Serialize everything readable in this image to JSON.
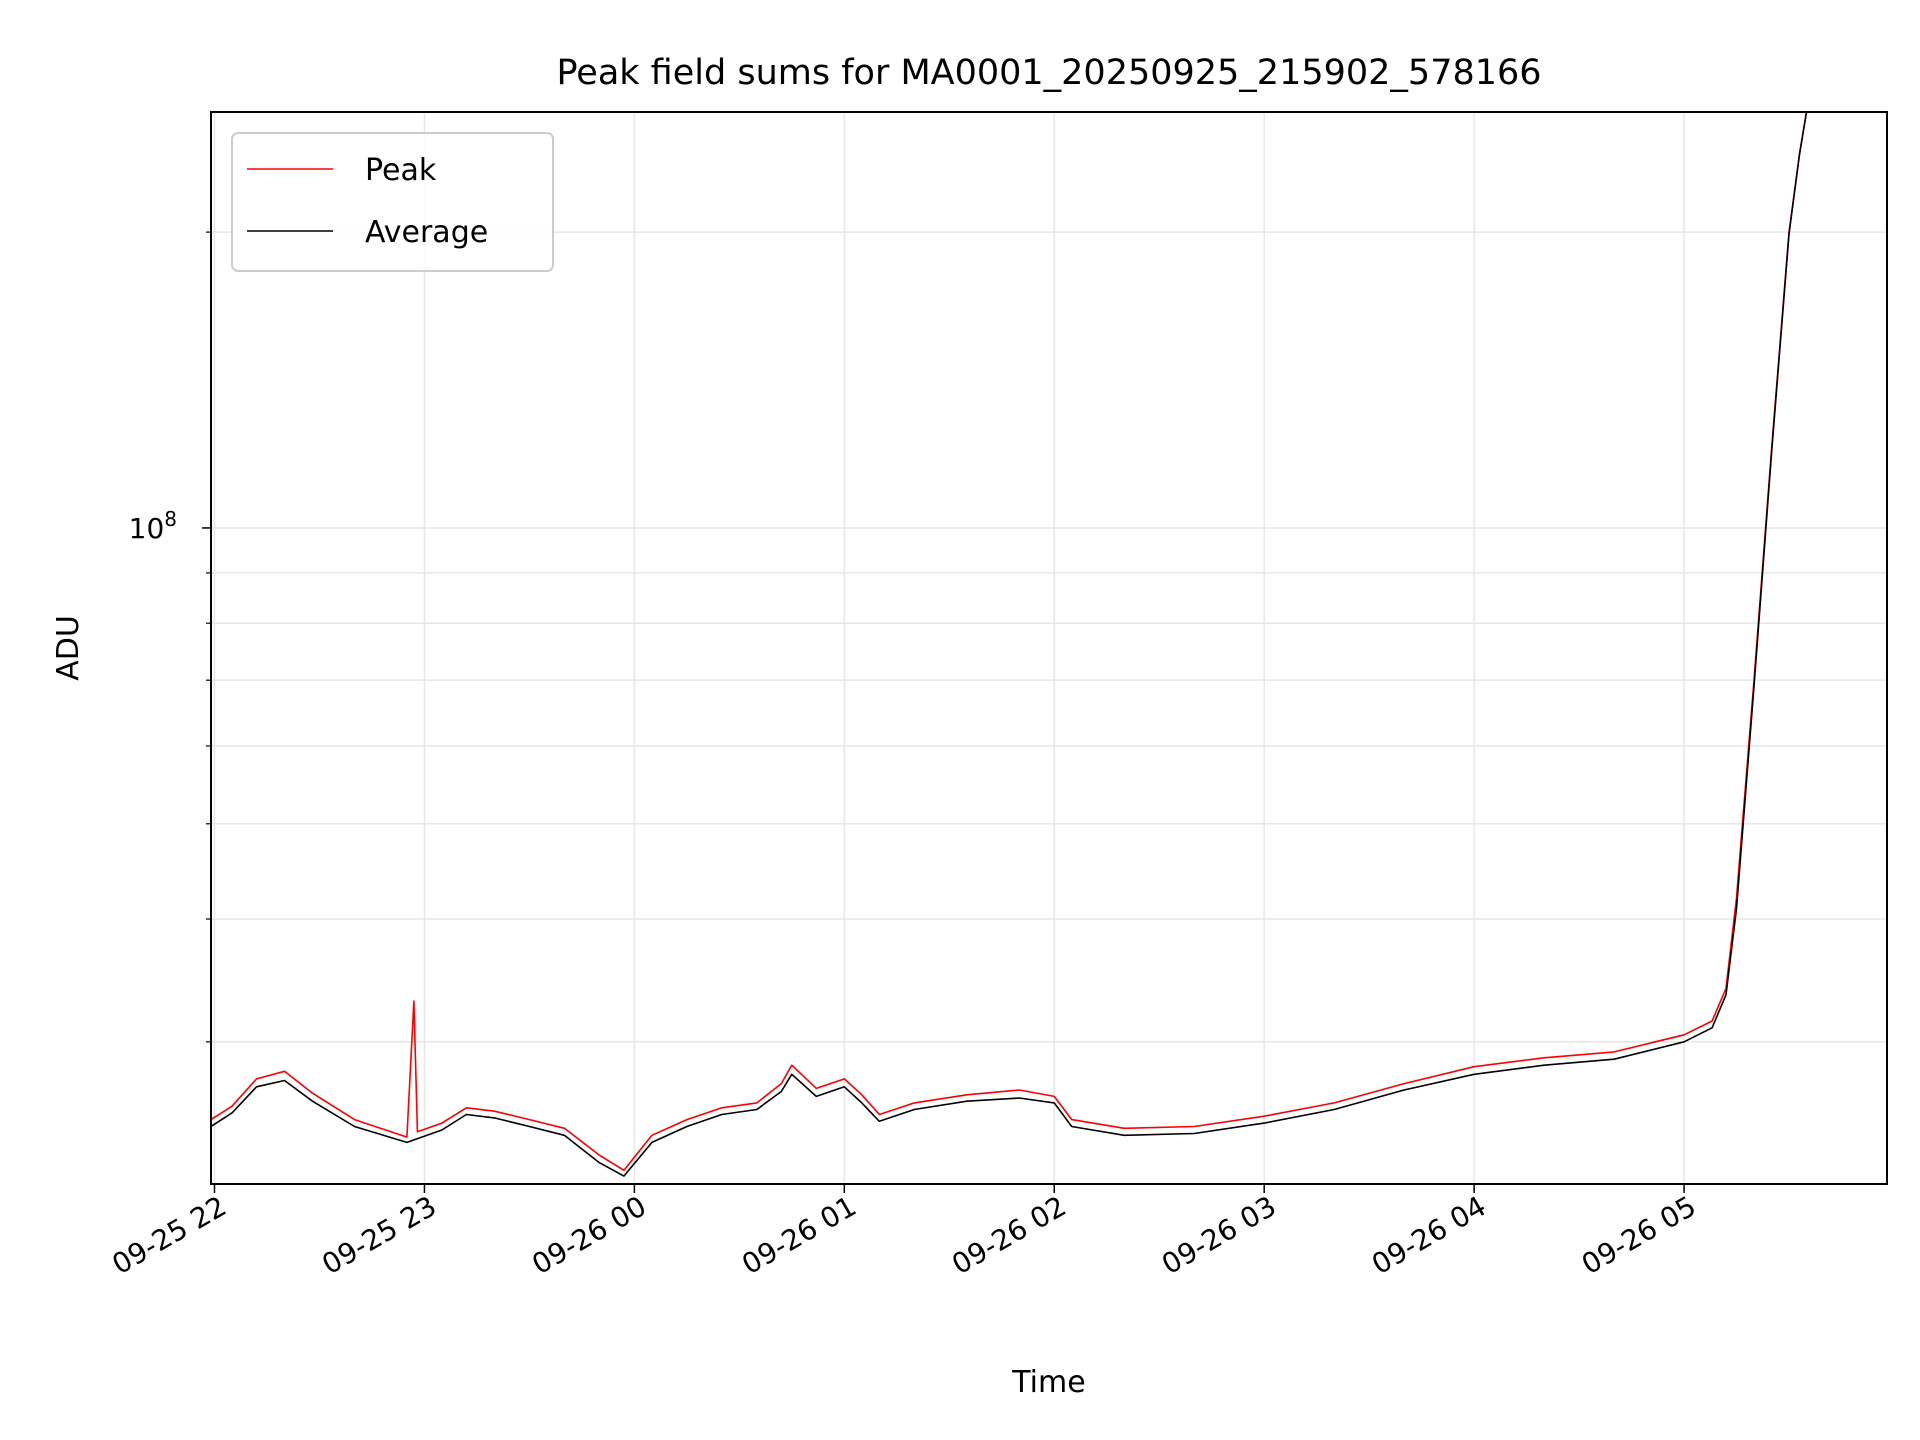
{
  "chart_data": {
    "type": "line",
    "title": "Peak field sums for MA0001_20250925_215902_578166",
    "xlabel": "Time",
    "ylabel": "ADU",
    "y_scale": "log",
    "grid": true,
    "legend_placement": "top-left",
    "xlim": [
      "2025-09-25 21:59",
      "2025-09-26 05:58"
    ],
    "ylim": [
      21500000,
      265000000
    ],
    "x_ticks": [
      {
        "value": "2025-09-25 22:00",
        "label": "09-25 22"
      },
      {
        "value": "2025-09-25 23:00",
        "label": "09-25 23"
      },
      {
        "value": "2025-09-26 00:00",
        "label": "09-26 00"
      },
      {
        "value": "2025-09-26 01:00",
        "label": "09-26 01"
      },
      {
        "value": "2025-09-26 02:00",
        "label": "09-26 02"
      },
      {
        "value": "2025-09-26 03:00",
        "label": "09-26 03"
      },
      {
        "value": "2025-09-26 04:00",
        "label": "09-26 04"
      },
      {
        "value": "2025-09-26 05:00",
        "label": "09-26 05"
      }
    ],
    "y_major_ticks": [
      {
        "value": 100000000,
        "base": "10",
        "exp": "8"
      }
    ],
    "y_minor_ticks": [
      30000000,
      40000000,
      50000000,
      60000000,
      70000000,
      80000000,
      90000000,
      200000000
    ],
    "series": [
      {
        "name": "Peak",
        "color": "#ff0000",
        "points": [
          [
            "2025-09-25 21:59",
            25000000
          ],
          [
            "2025-09-25 22:05",
            25800000
          ],
          [
            "2025-09-25 22:12",
            27500000
          ],
          [
            "2025-09-25 22:20",
            28000000
          ],
          [
            "2025-09-25 22:28",
            26600000
          ],
          [
            "2025-09-25 22:40",
            25000000
          ],
          [
            "2025-09-25 22:55",
            24000000
          ],
          [
            "2025-09-25 22:57",
            33000000
          ],
          [
            "2025-09-25 22:58",
            24300000
          ],
          [
            "2025-09-25 23:05",
            24800000
          ],
          [
            "2025-09-25 23:12",
            25700000
          ],
          [
            "2025-09-25 23:20",
            25500000
          ],
          [
            "2025-09-25 23:30",
            25000000
          ],
          [
            "2025-09-25 23:40",
            24500000
          ],
          [
            "2025-09-25 23:50",
            23000000
          ],
          [
            "2025-09-25 23:57",
            22200000
          ],
          [
            "2025-09-26 00:05",
            24100000
          ],
          [
            "2025-09-26 00:15",
            25000000
          ],
          [
            "2025-09-26 00:25",
            25700000
          ],
          [
            "2025-09-26 00:35",
            26000000
          ],
          [
            "2025-09-26 00:42",
            27200000
          ],
          [
            "2025-09-26 00:45",
            28400000
          ],
          [
            "2025-09-26 00:52",
            26900000
          ],
          [
            "2025-09-26 01:00",
            27500000
          ],
          [
            "2025-09-26 01:05",
            26500000
          ],
          [
            "2025-09-26 01:10",
            25300000
          ],
          [
            "2025-09-26 01:20",
            26000000
          ],
          [
            "2025-09-26 01:35",
            26500000
          ],
          [
            "2025-09-26 01:50",
            26800000
          ],
          [
            "2025-09-26 02:00",
            26400000
          ],
          [
            "2025-09-26 02:05",
            25000000
          ],
          [
            "2025-09-26 02:20",
            24500000
          ],
          [
            "2025-09-26 02:40",
            24600000
          ],
          [
            "2025-09-26 03:00",
            25200000
          ],
          [
            "2025-09-26 03:20",
            26000000
          ],
          [
            "2025-09-26 03:40",
            27200000
          ],
          [
            "2025-09-26 04:00",
            28300000
          ],
          [
            "2025-09-26 04:20",
            28900000
          ],
          [
            "2025-09-26 04:40",
            29300000
          ],
          [
            "2025-09-26 05:00",
            30500000
          ],
          [
            "2025-09-26 05:08",
            31500000
          ],
          [
            "2025-09-26 05:12",
            34000000
          ],
          [
            "2025-09-26 05:15",
            42000000
          ],
          [
            "2025-09-26 05:20",
            70000000
          ],
          [
            "2025-09-26 05:25",
            120000000
          ],
          [
            "2025-09-26 05:30",
            200000000
          ],
          [
            "2025-09-26 05:33",
            240000000
          ],
          [
            "2025-09-26 05:35",
            265000000
          ]
        ]
      },
      {
        "name": "Average",
        "color": "#000000",
        "points": [
          [
            "2025-09-25 21:59",
            24600000
          ],
          [
            "2025-09-25 22:05",
            25400000
          ],
          [
            "2025-09-25 22:12",
            27000000
          ],
          [
            "2025-09-25 22:20",
            27400000
          ],
          [
            "2025-09-25 22:28",
            26100000
          ],
          [
            "2025-09-25 22:40",
            24600000
          ],
          [
            "2025-09-25 22:55",
            23700000
          ],
          [
            "2025-09-25 23:05",
            24400000
          ],
          [
            "2025-09-25 23:12",
            25300000
          ],
          [
            "2025-09-25 23:20",
            25100000
          ],
          [
            "2025-09-25 23:30",
            24600000
          ],
          [
            "2025-09-25 23:40",
            24100000
          ],
          [
            "2025-09-25 23:50",
            22600000
          ],
          [
            "2025-09-25 23:57",
            21900000
          ],
          [
            "2025-09-26 00:05",
            23700000
          ],
          [
            "2025-09-26 00:15",
            24600000
          ],
          [
            "2025-09-26 00:25",
            25300000
          ],
          [
            "2025-09-26 00:35",
            25600000
          ],
          [
            "2025-09-26 00:42",
            26700000
          ],
          [
            "2025-09-26 00:45",
            27800000
          ],
          [
            "2025-09-26 00:52",
            26400000
          ],
          [
            "2025-09-26 01:00",
            27000000
          ],
          [
            "2025-09-26 01:05",
            26000000
          ],
          [
            "2025-09-26 01:10",
            24900000
          ],
          [
            "2025-09-26 01:20",
            25600000
          ],
          [
            "2025-09-26 01:35",
            26100000
          ],
          [
            "2025-09-26 01:50",
            26300000
          ],
          [
            "2025-09-26 02:00",
            26000000
          ],
          [
            "2025-09-26 02:05",
            24600000
          ],
          [
            "2025-09-26 02:20",
            24100000
          ],
          [
            "2025-09-26 02:40",
            24200000
          ],
          [
            "2025-09-26 03:00",
            24800000
          ],
          [
            "2025-09-26 03:20",
            25600000
          ],
          [
            "2025-09-26 03:40",
            26800000
          ],
          [
            "2025-09-26 04:00",
            27800000
          ],
          [
            "2025-09-26 04:20",
            28400000
          ],
          [
            "2025-09-26 04:40",
            28800000
          ],
          [
            "2025-09-26 05:00",
            30000000
          ],
          [
            "2025-09-26 05:08",
            31000000
          ],
          [
            "2025-09-26 05:12",
            33500000
          ],
          [
            "2025-09-26 05:15",
            41000000
          ],
          [
            "2025-09-26 05:20",
            69000000
          ],
          [
            "2025-09-26 05:25",
            119000000
          ],
          [
            "2025-09-26 05:30",
            199000000
          ],
          [
            "2025-09-26 05:33",
            240000000
          ],
          [
            "2025-09-26 05:35",
            265000000
          ]
        ]
      }
    ]
  }
}
